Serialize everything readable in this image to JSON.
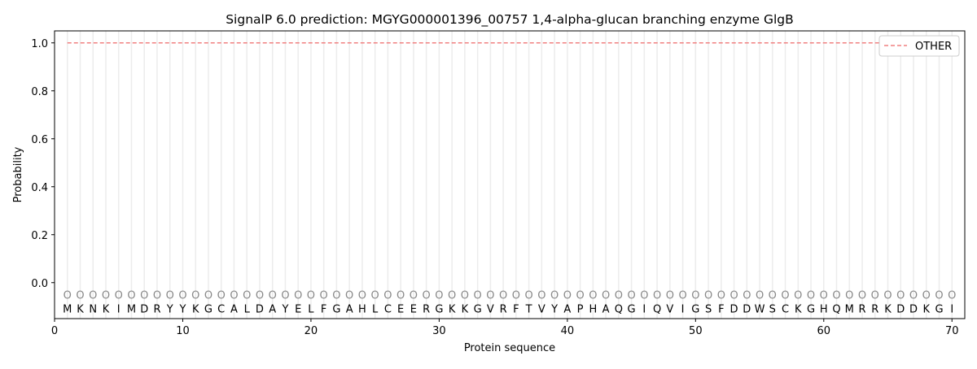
{
  "chart_data": {
    "type": "line",
    "title": "SignalP 6.0 prediction: MGYG000001396_00757 1,4-alpha-glucan branching enzyme GlgB",
    "xlabel": "Protein sequence",
    "ylabel": "Probability",
    "xlim": [
      0,
      71
    ],
    "ylim": [
      -0.15,
      1.05
    ],
    "xticks": [
      0,
      10,
      20,
      30,
      40,
      50,
      60,
      70
    ],
    "yticks": [
      "0.0",
      "0.2",
      "0.4",
      "0.6",
      "0.8",
      "1.0"
    ],
    "sequence": "MKNKIMDRYYKGCALDAYELFGAHLCEERGKKGVRFTVYAPHAQGIQVIGSFDDWSCKGHQMRRKDDKGI",
    "predicted_label": "O",
    "series": [
      {
        "name": "OTHER",
        "color": "#f08080",
        "style": "dashed",
        "x_range": [
          1,
          70
        ],
        "value": 1.0
      }
    ],
    "legend_position": "top-right",
    "grid": "vertical per residue"
  }
}
